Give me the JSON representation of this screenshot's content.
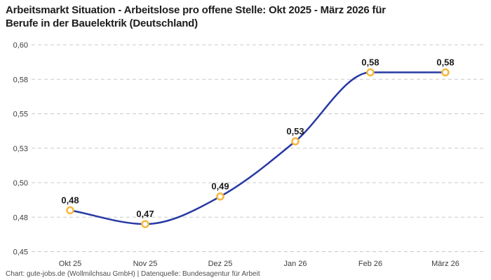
{
  "header": {
    "title_line1": "Arbeitsmarkt Situation - Arbeitslose pro offene Stelle: Okt 2025 - März 2026 für",
    "title_line2": "Berufe in der Bauelektrik (Deutschland)"
  },
  "footer": {
    "credit": "Chart: gute-jobs.de (Wollmilchsau GmbH) | Datenquelle: Bundesagentur für Arbeit"
  },
  "colors": {
    "line": "#2639a3",
    "marker_ring": "#f6b73c",
    "marker_fill": "#ffffff",
    "grid": "#c9c9c9",
    "tick_text": "#3d3d3d",
    "value_label": "#1a1a1a",
    "title_text": "#1d1d1d"
  },
  "chart_data": {
    "type": "line",
    "title": "Arbeitsmarkt Situation - Arbeitslose pro offene Stelle: Okt 2025 - März 2026 für Berufe in der Bauelektrik (Deutschland)",
    "categories": [
      "Okt 25",
      "Nov 25",
      "Dez 25",
      "Jan 26",
      "Feb 26",
      "März 26"
    ],
    "values": [
      0.48,
      0.47,
      0.49,
      0.53,
      0.58,
      0.58
    ],
    "value_labels": [
      "0,48",
      "0,47",
      "0,49",
      "0,53",
      "0,58",
      "0,58"
    ],
    "xlabel": "",
    "ylabel": "",
    "ylim": [
      0.45,
      0.6
    ],
    "yticks": [
      {
        "label": "0,60",
        "value": 0.6
      },
      {
        "label": "0,58",
        "value": 0.575
      },
      {
        "label": "0,55",
        "value": 0.55
      },
      {
        "label": "0,53",
        "value": 0.525
      },
      {
        "label": "0,50",
        "value": 0.5
      },
      {
        "label": "0,48",
        "value": 0.475
      },
      {
        "label": "0,45",
        "value": 0.45
      }
    ],
    "grid": "dashed-horizontal",
    "legend": "none",
    "interpolation": "monotone-smooth"
  }
}
